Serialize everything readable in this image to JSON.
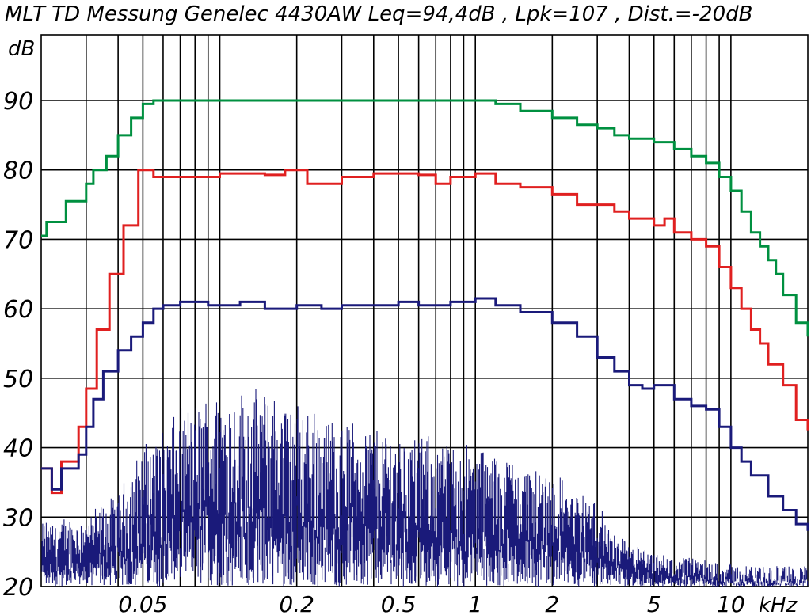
{
  "chart_data": {
    "type": "line",
    "title": "MLT TD Messung Genelec 4430AW Leq=94,4dB  ,  Lpk=107  ,  Dist.=-20dB",
    "ylabel": "dB",
    "xunit": "kHz",
    "xscale": "log",
    "xlim": [
      0.02,
      20
    ],
    "ylim": [
      20,
      95
    ],
    "grid": true,
    "yticks": [
      {
        "v": 20,
        "label": "20"
      },
      {
        "v": 30,
        "label": "30"
      },
      {
        "v": 40,
        "label": "40"
      },
      {
        "v": 50,
        "label": "50"
      },
      {
        "v": 60,
        "label": "60"
      },
      {
        "v": 70,
        "label": "70"
      },
      {
        "v": 80,
        "label": "80"
      },
      {
        "v": 90,
        "label": "90"
      }
    ],
    "xticks": [
      {
        "v": 0.05,
        "label": "0.05"
      },
      {
        "v": 0.2,
        "label": "0.2"
      },
      {
        "v": 0.5,
        "label": "0.5"
      },
      {
        "v": 1,
        "label": "1"
      },
      {
        "v": 2,
        "label": "2"
      },
      {
        "v": 5,
        "label": "5"
      },
      {
        "v": 10,
        "label": "10"
      }
    ],
    "xgrid": [
      0.03,
      0.04,
      0.05,
      0.06,
      0.07,
      0.08,
      0.09,
      0.1,
      0.2,
      0.3,
      0.4,
      0.5,
      0.6,
      0.7,
      0.8,
      0.9,
      1,
      2,
      3,
      4,
      5,
      6,
      7,
      8,
      9,
      10
    ],
    "series": [
      {
        "color": "#009040",
        "step": true,
        "points": [
          [
            0.02,
            70.5
          ],
          [
            0.021,
            72.5
          ],
          [
            0.025,
            75.5
          ],
          [
            0.03,
            78
          ],
          [
            0.032,
            80
          ],
          [
            0.036,
            82
          ],
          [
            0.04,
            85
          ],
          [
            0.045,
            87.5
          ],
          [
            0.05,
            89.5
          ],
          [
            0.055,
            90
          ],
          [
            0.1,
            90
          ],
          [
            0.5,
            90
          ],
          [
            1,
            90
          ],
          [
            1.2,
            89.5
          ],
          [
            1.5,
            88.5
          ],
          [
            2,
            87.5
          ],
          [
            2.5,
            86.5
          ],
          [
            3,
            86
          ],
          [
            3.5,
            85
          ],
          [
            4,
            84.5
          ],
          [
            5,
            84
          ],
          [
            6,
            83
          ],
          [
            7,
            82
          ],
          [
            8,
            81
          ],
          [
            9,
            79
          ],
          [
            10,
            77
          ],
          [
            11,
            74
          ],
          [
            12,
            71
          ],
          [
            13,
            69
          ],
          [
            14,
            67
          ],
          [
            15,
            65
          ],
          [
            16,
            62
          ],
          [
            18,
            58
          ],
          [
            20,
            56
          ]
        ]
      },
      {
        "color": "#e02020",
        "step": true,
        "points": [
          [
            0.02,
            37
          ],
          [
            0.022,
            33.5
          ],
          [
            0.024,
            38
          ],
          [
            0.028,
            43
          ],
          [
            0.03,
            48.5
          ],
          [
            0.033,
            57
          ],
          [
            0.037,
            65
          ],
          [
            0.042,
            72
          ],
          [
            0.048,
            80
          ],
          [
            0.055,
            79
          ],
          [
            0.07,
            79
          ],
          [
            0.1,
            79.5
          ],
          [
            0.15,
            79.3
          ],
          [
            0.18,
            80
          ],
          [
            0.22,
            78
          ],
          [
            0.3,
            79
          ],
          [
            0.4,
            79.5
          ],
          [
            0.5,
            79.5
          ],
          [
            0.6,
            79.3
          ],
          [
            0.7,
            78
          ],
          [
            0.8,
            79
          ],
          [
            1,
            79.5
          ],
          [
            1.2,
            78
          ],
          [
            1.5,
            77.5
          ],
          [
            2,
            76.5
          ],
          [
            2.5,
            75
          ],
          [
            3,
            75
          ],
          [
            3.5,
            74
          ],
          [
            4,
            73
          ],
          [
            5,
            72
          ],
          [
            5.5,
            73
          ],
          [
            6,
            71
          ],
          [
            7,
            70
          ],
          [
            8,
            69
          ],
          [
            9,
            66
          ],
          [
            10,
            63
          ],
          [
            11,
            60
          ],
          [
            12,
            57
          ],
          [
            13,
            55
          ],
          [
            14,
            52
          ],
          [
            16,
            49
          ],
          [
            18,
            44
          ],
          [
            20,
            42.5
          ]
        ]
      },
      {
        "color": "#1a1a7a",
        "step": true,
        "points": [
          [
            0.02,
            37
          ],
          [
            0.022,
            34
          ],
          [
            0.024,
            37
          ],
          [
            0.028,
            39
          ],
          [
            0.03,
            43
          ],
          [
            0.032,
            47
          ],
          [
            0.035,
            51
          ],
          [
            0.04,
            54
          ],
          [
            0.045,
            56
          ],
          [
            0.05,
            58
          ],
          [
            0.055,
            60
          ],
          [
            0.06,
            60.5
          ],
          [
            0.07,
            61
          ],
          [
            0.09,
            60.5
          ],
          [
            0.12,
            61
          ],
          [
            0.15,
            60
          ],
          [
            0.2,
            60.5
          ],
          [
            0.25,
            60
          ],
          [
            0.3,
            60.5
          ],
          [
            0.4,
            60.5
          ],
          [
            0.5,
            61
          ],
          [
            0.6,
            60.5
          ],
          [
            0.8,
            61
          ],
          [
            1,
            61.5
          ],
          [
            1.2,
            60.5
          ],
          [
            1.5,
            59.5
          ],
          [
            2,
            58
          ],
          [
            2.5,
            56
          ],
          [
            3,
            53
          ],
          [
            3.5,
            51
          ],
          [
            4,
            49
          ],
          [
            4.5,
            48.5
          ],
          [
            5,
            49
          ],
          [
            6,
            47
          ],
          [
            7,
            46
          ],
          [
            8,
            45.5
          ],
          [
            9,
            43
          ],
          [
            10,
            40
          ],
          [
            11,
            38
          ],
          [
            12,
            36
          ],
          [
            14,
            33
          ],
          [
            16,
            31
          ],
          [
            18,
            29
          ],
          [
            20,
            28
          ]
        ]
      }
    ],
    "spectrum": {
      "color": "#1a1a7a",
      "envelope": [
        [
          0.02,
          27
        ],
        [
          0.03,
          28
        ],
        [
          0.04,
          31
        ],
        [
          0.05,
          38
        ],
        [
          0.07,
          43
        ],
        [
          0.1,
          46
        ],
        [
          0.15,
          46
        ],
        [
          0.2,
          44
        ],
        [
          0.3,
          42
        ],
        [
          0.5,
          40
        ],
        [
          0.7,
          39
        ],
        [
          1,
          38
        ],
        [
          1.5,
          36
        ],
        [
          2,
          34
        ],
        [
          3,
          30
        ],
        [
          3.5,
          25
        ],
        [
          5,
          22
        ],
        [
          8,
          21
        ],
        [
          12,
          20
        ],
        [
          20,
          20
        ]
      ]
    }
  }
}
